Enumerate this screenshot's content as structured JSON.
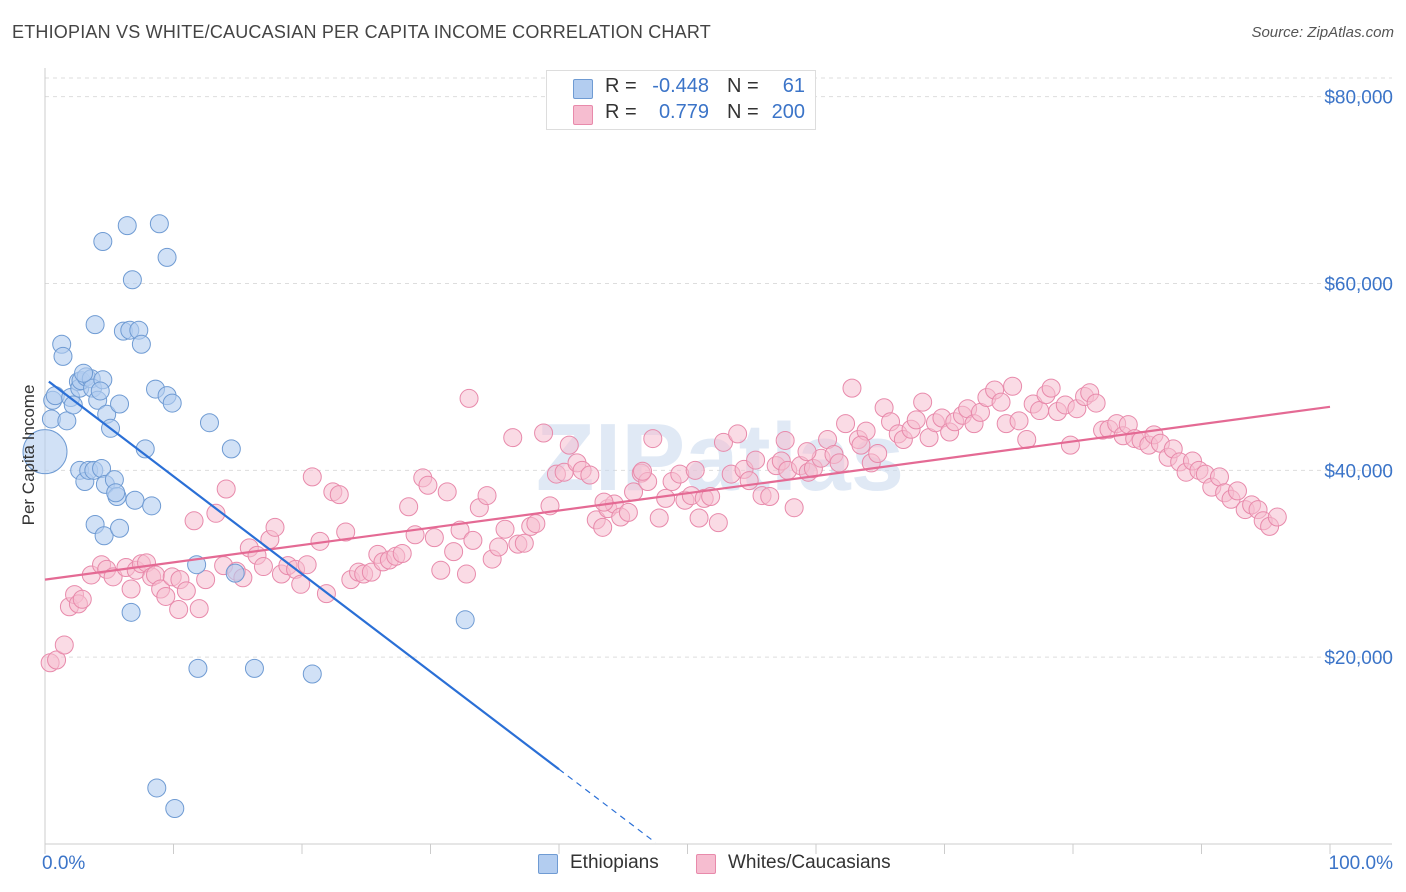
{
  "title": "ETHIOPIAN VS WHITE/CAUCASIAN PER CAPITA INCOME CORRELATION CHART",
  "source": "Source: ZipAtlas.com",
  "watermark": "ZIPatlas",
  "legend_stats": [
    {
      "series": "Ethiopians",
      "r_label": "R =",
      "r_value": "-0.448",
      "n_label": "N =",
      "n_value": "61"
    },
    {
      "series": "Whites/Caucasians",
      "r_label": "R =",
      "r_value": "0.779",
      "n_label": "N =",
      "n_value": "200"
    }
  ],
  "colors": {
    "ethiopians_fill": "#b3cdf0",
    "ethiopians_stroke": "#6f9bd3",
    "ethiopians_line": "#2a6fd6",
    "whites_fill": "#f6bdd0",
    "whites_stroke": "#e88aab",
    "whites_line": "#e46a94",
    "axis_label": "#3b74c8",
    "grid": "#dddddd"
  },
  "chart_data": {
    "type": "scatter",
    "title": "ETHIOPIAN VS WHITE/CAUCASIAN PER CAPITA INCOME CORRELATION CHART",
    "xlabel": "",
    "ylabel": "Per Capita Income",
    "xlim": [
      0,
      100
    ],
    "ylim": [
      0,
      82000
    ],
    "x_tick_labels": [
      "0.0%",
      "100.0%"
    ],
    "y_ticks": [
      20000,
      40000,
      60000,
      80000
    ],
    "y_tick_labels": [
      "$20,000",
      "$40,000",
      "$60,000",
      "$80,000"
    ],
    "grid": true,
    "legend_position": "top-center",
    "series": [
      {
        "name": "Ethiopians",
        "regression": {
          "x0": 0.3,
          "y0": 49500,
          "x1": 40.0,
          "y1": 8000,
          "dash_to_x": 47.5
        },
        "points": [
          [
            0,
            42000
          ],
          [
            0.5,
            45500
          ],
          [
            0.6,
            47500
          ],
          [
            0.8,
            48000
          ],
          [
            1.3,
            53500
          ],
          [
            1.4,
            52200
          ],
          [
            1.7,
            45300
          ],
          [
            2.0,
            47800
          ],
          [
            2.2,
            47000
          ],
          [
            2.6,
            49500
          ],
          [
            2.7,
            48800
          ],
          [
            2.7,
            40000
          ],
          [
            2.8,
            49600
          ],
          [
            3.1,
            38800
          ],
          [
            3.2,
            50000
          ],
          [
            3.4,
            40000
          ],
          [
            3.6,
            49800
          ],
          [
            3.7,
            48800
          ],
          [
            3.8,
            40000
          ],
          [
            3.9,
            55600
          ],
          [
            3.9,
            34200
          ],
          [
            4.1,
            47500
          ],
          [
            4.5,
            49700
          ],
          [
            4.4,
            40200
          ],
          [
            4.5,
            64500
          ],
          [
            4.6,
            33000
          ],
          [
            4.7,
            38500
          ],
          [
            4.8,
            46000
          ],
          [
            5.1,
            44500
          ],
          [
            5.4,
            39000
          ],
          [
            5.6,
            37200
          ],
          [
            5.5,
            37600
          ],
          [
            5.8,
            47100
          ],
          [
            5.8,
            33800
          ],
          [
            6.1,
            54900
          ],
          [
            6.4,
            66200
          ],
          [
            6.6,
            55000
          ],
          [
            6.7,
            24800
          ],
          [
            6.8,
            60400
          ],
          [
            7.0,
            36800
          ],
          [
            7.3,
            55000
          ],
          [
            7.5,
            53500
          ],
          [
            7.8,
            42300
          ],
          [
            8.3,
            36200
          ],
          [
            8.6,
            48700
          ],
          [
            8.7,
            6000
          ],
          [
            8.9,
            66400
          ],
          [
            9.5,
            48000
          ],
          [
            9.5,
            62800
          ],
          [
            9.9,
            47200
          ],
          [
            10.1,
            3800
          ],
          [
            11.8,
            29900
          ],
          [
            11.9,
            18800
          ],
          [
            12.8,
            45100
          ],
          [
            14.5,
            42300
          ],
          [
            14.8,
            29000
          ],
          [
            16.3,
            18800
          ],
          [
            20.8,
            18200
          ],
          [
            32.7,
            24000
          ],
          [
            4.3,
            48500
          ],
          [
            3.0,
            50400
          ]
        ]
      },
      {
        "name": "Whites/Caucasians",
        "regression": {
          "x0": 0,
          "y0": 28300,
          "x1": 100,
          "y1": 46800
        },
        "points": [
          [
            0.4,
            19400
          ],
          [
            0.9,
            19700
          ],
          [
            1.5,
            21300
          ],
          [
            1.9,
            25400
          ],
          [
            2.3,
            26700
          ],
          [
            2.6,
            25700
          ],
          [
            2.9,
            26200
          ],
          [
            3.6,
            28800
          ],
          [
            4.4,
            29900
          ],
          [
            4.8,
            29400
          ],
          [
            5.3,
            28600
          ],
          [
            6.3,
            29600
          ],
          [
            6.7,
            27300
          ],
          [
            7.1,
            29300
          ],
          [
            7.5,
            30000
          ],
          [
            7.9,
            30100
          ],
          [
            8.3,
            28600
          ],
          [
            8.6,
            28800
          ],
          [
            9.0,
            27300
          ],
          [
            9.4,
            26500
          ],
          [
            9.9,
            28600
          ],
          [
            10.4,
            25100
          ],
          [
            10.5,
            28300
          ],
          [
            11.0,
            27100
          ],
          [
            11.6,
            34600
          ],
          [
            12.0,
            25200
          ],
          [
            12.5,
            28300
          ],
          [
            13.3,
            35400
          ],
          [
            13.9,
            29800
          ],
          [
            14.1,
            38000
          ],
          [
            14.9,
            29200
          ],
          [
            15.4,
            28500
          ],
          [
            15.9,
            31700
          ],
          [
            16.5,
            30900
          ],
          [
            17.0,
            29700
          ],
          [
            17.5,
            32600
          ],
          [
            17.9,
            33900
          ],
          [
            18.4,
            28900
          ],
          [
            18.9,
            29800
          ],
          [
            19.5,
            29400
          ],
          [
            19.9,
            27800
          ],
          [
            20.4,
            29900
          ],
          [
            20.8,
            39300
          ],
          [
            21.4,
            32400
          ],
          [
            21.9,
            26800
          ],
          [
            22.4,
            37700
          ],
          [
            22.9,
            37400
          ],
          [
            23.4,
            33400
          ],
          [
            23.8,
            28300
          ],
          [
            24.4,
            29100
          ],
          [
            24.8,
            28900
          ],
          [
            25.4,
            29100
          ],
          [
            25.9,
            31000
          ],
          [
            26.3,
            30200
          ],
          [
            26.8,
            30400
          ],
          [
            27.3,
            30800
          ],
          [
            27.8,
            31100
          ],
          [
            28.3,
            36100
          ],
          [
            28.8,
            33100
          ],
          [
            29.4,
            39200
          ],
          [
            29.8,
            38400
          ],
          [
            30.3,
            32800
          ],
          [
            30.8,
            29300
          ],
          [
            31.3,
            37700
          ],
          [
            31.8,
            31300
          ],
          [
            32.3,
            33600
          ],
          [
            32.8,
            28900
          ],
          [
            33.3,
            32500
          ],
          [
            33.8,
            36000
          ],
          [
            34.4,
            37300
          ],
          [
            34.8,
            30500
          ],
          [
            35.3,
            31800
          ],
          [
            35.8,
            33700
          ],
          [
            36.4,
            43500
          ],
          [
            36.8,
            32100
          ],
          [
            37.3,
            32200
          ],
          [
            37.8,
            34000
          ],
          [
            38.2,
            34300
          ],
          [
            38.8,
            44000
          ],
          [
            39.3,
            36200
          ],
          [
            39.8,
            39600
          ],
          [
            40.4,
            39800
          ],
          [
            40.8,
            42700
          ],
          [
            41.4,
            40800
          ],
          [
            41.8,
            40000
          ],
          [
            42.4,
            39500
          ],
          [
            42.9,
            34700
          ],
          [
            43.4,
            33900
          ],
          [
            43.8,
            35900
          ],
          [
            44.3,
            36400
          ],
          [
            44.8,
            35000
          ],
          [
            45.4,
            35500
          ],
          [
            45.8,
            37700
          ],
          [
            46.4,
            39700
          ],
          [
            46.9,
            38800
          ],
          [
            47.3,
            43400
          ],
          [
            47.8,
            34900
          ],
          [
            48.3,
            37000
          ],
          [
            48.8,
            38800
          ],
          [
            49.4,
            39600
          ],
          [
            49.8,
            36800
          ],
          [
            50.3,
            37300
          ],
          [
            50.9,
            34900
          ],
          [
            51.3,
            37000
          ],
          [
            51.8,
            37200
          ],
          [
            52.4,
            34400
          ],
          [
            52.8,
            43000
          ],
          [
            53.4,
            39600
          ],
          [
            53.9,
            43900
          ],
          [
            54.4,
            40100
          ],
          [
            54.8,
            38900
          ],
          [
            55.3,
            41100
          ],
          [
            55.8,
            37300
          ],
          [
            56.4,
            37200
          ],
          [
            56.9,
            40500
          ],
          [
            57.3,
            41000
          ],
          [
            57.8,
            40000
          ],
          [
            58.3,
            36000
          ],
          [
            58.8,
            40500
          ],
          [
            59.4,
            39800
          ],
          [
            59.8,
            40200
          ],
          [
            60.4,
            41300
          ],
          [
            60.9,
            43300
          ],
          [
            61.4,
            41700
          ],
          [
            61.8,
            40800
          ],
          [
            62.3,
            45000
          ],
          [
            62.8,
            48800
          ],
          [
            63.3,
            43300
          ],
          [
            63.9,
            44200
          ],
          [
            64.3,
            40800
          ],
          [
            64.8,
            41800
          ],
          [
            65.3,
            46700
          ],
          [
            65.8,
            45200
          ],
          [
            66.4,
            43900
          ],
          [
            66.8,
            43300
          ],
          [
            67.4,
            44400
          ],
          [
            67.8,
            45400
          ],
          [
            68.3,
            47300
          ],
          [
            68.8,
            43500
          ],
          [
            69.3,
            45100
          ],
          [
            69.8,
            45600
          ],
          [
            70.4,
            44100
          ],
          [
            70.8,
            45200
          ],
          [
            71.4,
            45900
          ],
          [
            71.8,
            46600
          ],
          [
            72.3,
            45000
          ],
          [
            72.8,
            46200
          ],
          [
            73.3,
            47800
          ],
          [
            73.9,
            48600
          ],
          [
            74.4,
            47300
          ],
          [
            74.8,
            45000
          ],
          [
            75.3,
            49000
          ],
          [
            75.8,
            45300
          ],
          [
            76.4,
            43300
          ],
          [
            76.9,
            47100
          ],
          [
            77.4,
            46400
          ],
          [
            77.9,
            48100
          ],
          [
            78.3,
            48800
          ],
          [
            78.8,
            46300
          ],
          [
            79.4,
            47000
          ],
          [
            79.8,
            42700
          ],
          [
            80.3,
            46600
          ],
          [
            80.9,
            47900
          ],
          [
            81.3,
            48300
          ],
          [
            81.8,
            47200
          ],
          [
            82.3,
            44300
          ],
          [
            82.8,
            44400
          ],
          [
            83.4,
            45000
          ],
          [
            83.9,
            43700
          ],
          [
            84.3,
            44900
          ],
          [
            84.8,
            43400
          ],
          [
            85.3,
            43200
          ],
          [
            85.9,
            42700
          ],
          [
            86.3,
            43800
          ],
          [
            86.8,
            42900
          ],
          [
            87.4,
            41400
          ],
          [
            87.8,
            42300
          ],
          [
            88.3,
            40900
          ],
          [
            88.8,
            39800
          ],
          [
            89.3,
            41000
          ],
          [
            89.8,
            40000
          ],
          [
            90.3,
            39600
          ],
          [
            90.8,
            38200
          ],
          [
            91.4,
            39300
          ],
          [
            91.8,
            37600
          ],
          [
            92.3,
            36900
          ],
          [
            92.8,
            37800
          ],
          [
            93.4,
            35800
          ],
          [
            93.9,
            36300
          ],
          [
            94.4,
            35800
          ],
          [
            94.8,
            34600
          ],
          [
            95.3,
            34000
          ],
          [
            95.9,
            35000
          ],
          [
            50.6,
            40000
          ],
          [
            43.5,
            36600
          ],
          [
            57.6,
            43200
          ],
          [
            33.0,
            47700
          ],
          [
            46.5,
            39900
          ],
          [
            59.3,
            42000
          ],
          [
            63.5,
            42700
          ]
        ]
      }
    ]
  }
}
